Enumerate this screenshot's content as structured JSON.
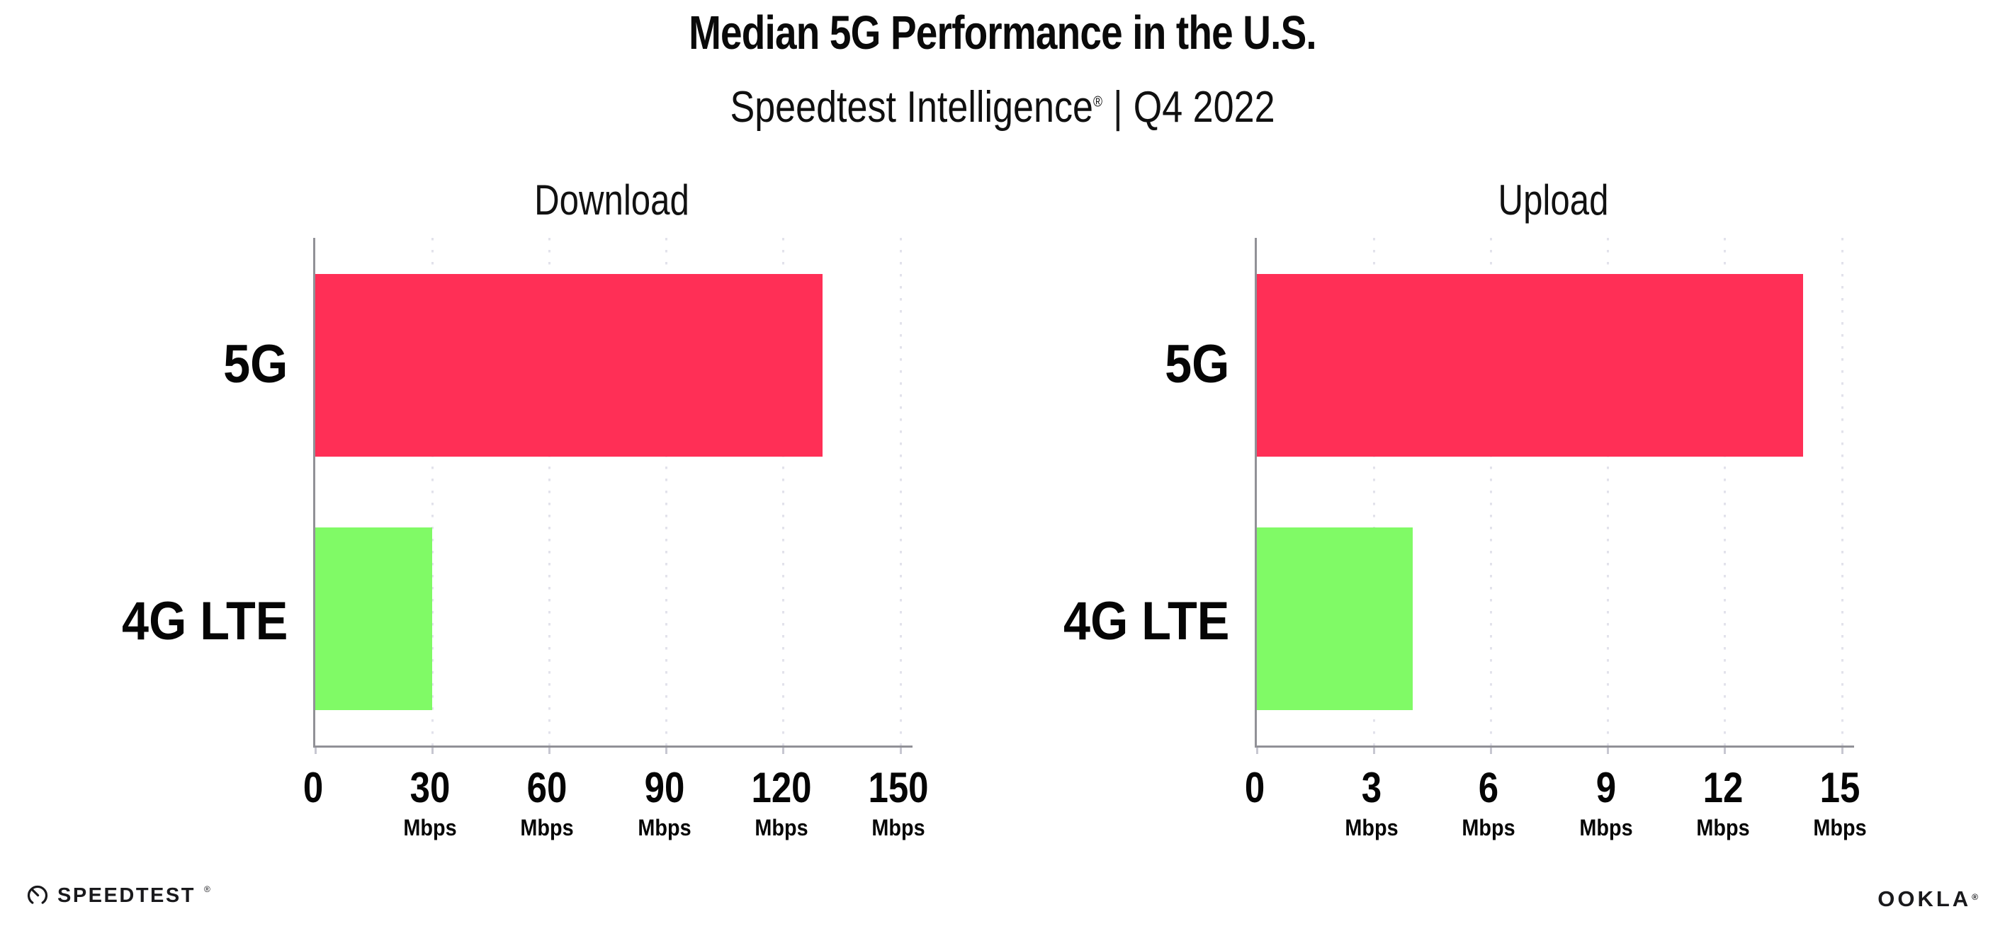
{
  "header": {
    "title": "Median 5G Performance in the U.S.",
    "subtitle_brand": "Speedtest Intelligence",
    "subtitle_reg": "®",
    "subtitle_separator": "|",
    "subtitle_period": "Q4 2022"
  },
  "chart_data": [
    {
      "type": "bar",
      "orientation": "horizontal",
      "title": "Download",
      "categories": [
        "5G",
        "4G LTE"
      ],
      "values": [
        130,
        30
      ],
      "unit": "Mbps",
      "xlim": [
        0,
        150
      ],
      "xticks": [
        0,
        30,
        60,
        90,
        120,
        150
      ],
      "tick_suffix": "Mbps",
      "grid": "vertical-dotted",
      "legend": "none",
      "bar_colors": [
        "#FF2F56",
        "#80FA66"
      ]
    },
    {
      "type": "bar",
      "orientation": "horizontal",
      "title": "Upload",
      "categories": [
        "5G",
        "4G LTE"
      ],
      "values": [
        14,
        4
      ],
      "unit": "Mbps",
      "xlim": [
        0,
        15
      ],
      "xticks": [
        0,
        3,
        6,
        9,
        12,
        15
      ],
      "tick_suffix": "Mbps",
      "grid": "vertical-dotted",
      "legend": "none",
      "bar_colors": [
        "#FF2F56",
        "#80FA66"
      ]
    }
  ],
  "colors": {
    "bar_5g": "#FF2F56",
    "bar_4g_lte": "#80FA66",
    "axis": "#919197",
    "gridline": "#E2E2EB",
    "text": "#0C0C0C"
  },
  "footer": {
    "speedtest_icon": "speedtest-gauge-icon",
    "speedtest_label": "SPEEDTEST",
    "speedtest_mark": "®",
    "ookla_label": "OOKLA",
    "ookla_mark": "®"
  }
}
